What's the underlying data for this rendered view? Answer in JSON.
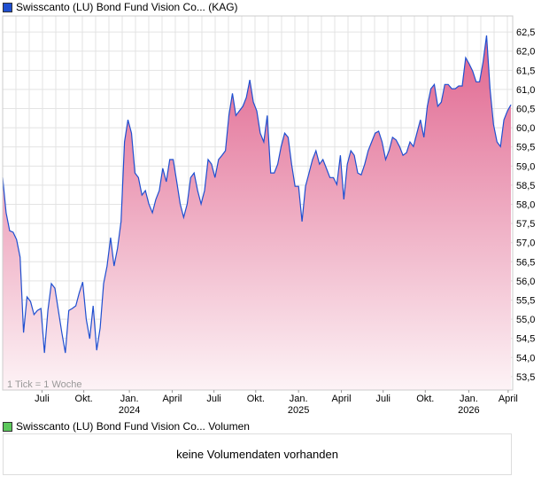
{
  "chart_data": {
    "type": "area",
    "title": "Swisscanto (LU) Bond Fund Vision Co... (KAG)",
    "series_color": "#1f4fd0",
    "fill_top": "#e0648e",
    "fill_bottom": "#fdf3f6",
    "note": "1 Tick = 1 Woche",
    "ylim": [
      53.15,
      62.92
    ],
    "yticks": [
      "53,5",
      "54,0",
      "54,5",
      "55,0",
      "55,5",
      "56,0",
      "56,5",
      "57,0",
      "57,5",
      "58,0",
      "58,5",
      "59,0",
      "59,5",
      "60,0",
      "60,5",
      "61,0",
      "61,5",
      "62,0",
      "62,5"
    ],
    "ytick_values": [
      53.5,
      54,
      54.5,
      55,
      55.5,
      56,
      56.5,
      57,
      57.5,
      58,
      58.5,
      59,
      59.5,
      60,
      60.5,
      61,
      61.5,
      62,
      62.5
    ],
    "xticks": [
      {
        "label": "Juli",
        "year": "",
        "index": 11.3
      },
      {
        "label": "Okt.",
        "year": "",
        "index": 23.3
      },
      {
        "label": "Jan.",
        "year": "2024",
        "index": 36.4
      },
      {
        "label": "April",
        "year": "",
        "index": 48.7
      },
      {
        "label": "Juli",
        "year": "",
        "index": 60.7
      },
      {
        "label": "Okt.",
        "year": "",
        "index": 72.7
      },
      {
        "label": "Jan.",
        "year": "2025",
        "index": 85
      },
      {
        "label": "April",
        "year": "",
        "index": 97.3
      },
      {
        "label": "Juli",
        "year": "",
        "index": 109.3
      },
      {
        "label": "Okt.",
        "year": "",
        "index": 121.4
      },
      {
        "label": "Jan.",
        "year": "2026",
        "index": 133.9
      },
      {
        "label": "April",
        "year": "",
        "index": 145.2
      }
    ],
    "values": [
      58.7,
      57.78,
      57.31,
      57.27,
      57.08,
      56.62,
      54.65,
      55.58,
      55.46,
      55.12,
      55.23,
      55.28,
      54.12,
      55.23,
      55.93,
      55.81,
      55.23,
      54.65,
      54.12,
      55.23,
      55.28,
      55.35,
      55.69,
      55.97,
      55.0,
      54.49,
      55.35,
      54.19,
      54.77,
      55.93,
      56.39,
      57.13,
      56.39,
      56.85,
      57.55,
      59.63,
      60.21,
      59.86,
      58.82,
      58.7,
      58.24,
      58.36,
      58.01,
      57.78,
      58.13,
      58.36,
      58.94,
      58.59,
      59.17,
      59.17,
      58.59,
      58.01,
      57.66,
      58.01,
      58.7,
      58.82,
      58.36,
      58.01,
      58.36,
      59.17,
      59.05,
      58.7,
      59.17,
      59.28,
      59.4,
      60.32,
      60.9,
      60.32,
      60.44,
      60.56,
      60.79,
      61.25,
      60.67,
      60.44,
      59.86,
      59.63,
      60.32,
      58.82,
      58.82,
      59.05,
      59.51,
      59.86,
      59.75,
      59.05,
      58.47,
      58.47,
      57.55,
      58.47,
      58.82,
      59.17,
      59.4,
      59.05,
      59.17,
      58.94,
      58.7,
      58.7,
      58.52,
      59.28,
      58.13,
      59.05,
      59.4,
      59.28,
      58.82,
      58.77,
      59.05,
      59.4,
      59.63,
      59.86,
      59.91,
      59.63,
      59.17,
      59.4,
      59.75,
      59.68,
      59.51,
      59.28,
      59.35,
      59.63,
      59.51,
      59.86,
      60.21,
      59.75,
      60.56,
      61.02,
      61.13,
      60.56,
      60.67,
      61.13,
      61.13,
      61.02,
      61.02,
      61.09,
      61.09,
      61.83,
      61.67,
      61.48,
      61.2,
      61.2,
      61.71,
      62.41,
      61.02,
      60.09,
      59.63,
      59.51,
      60.21,
      60.44,
      60.6
    ]
  },
  "volume": {
    "title": "Swisscanto (LU) Bond Fund Vision Co... Volumen",
    "message": "keine Volumendaten vorhanden",
    "color": "#5cc85c"
  }
}
